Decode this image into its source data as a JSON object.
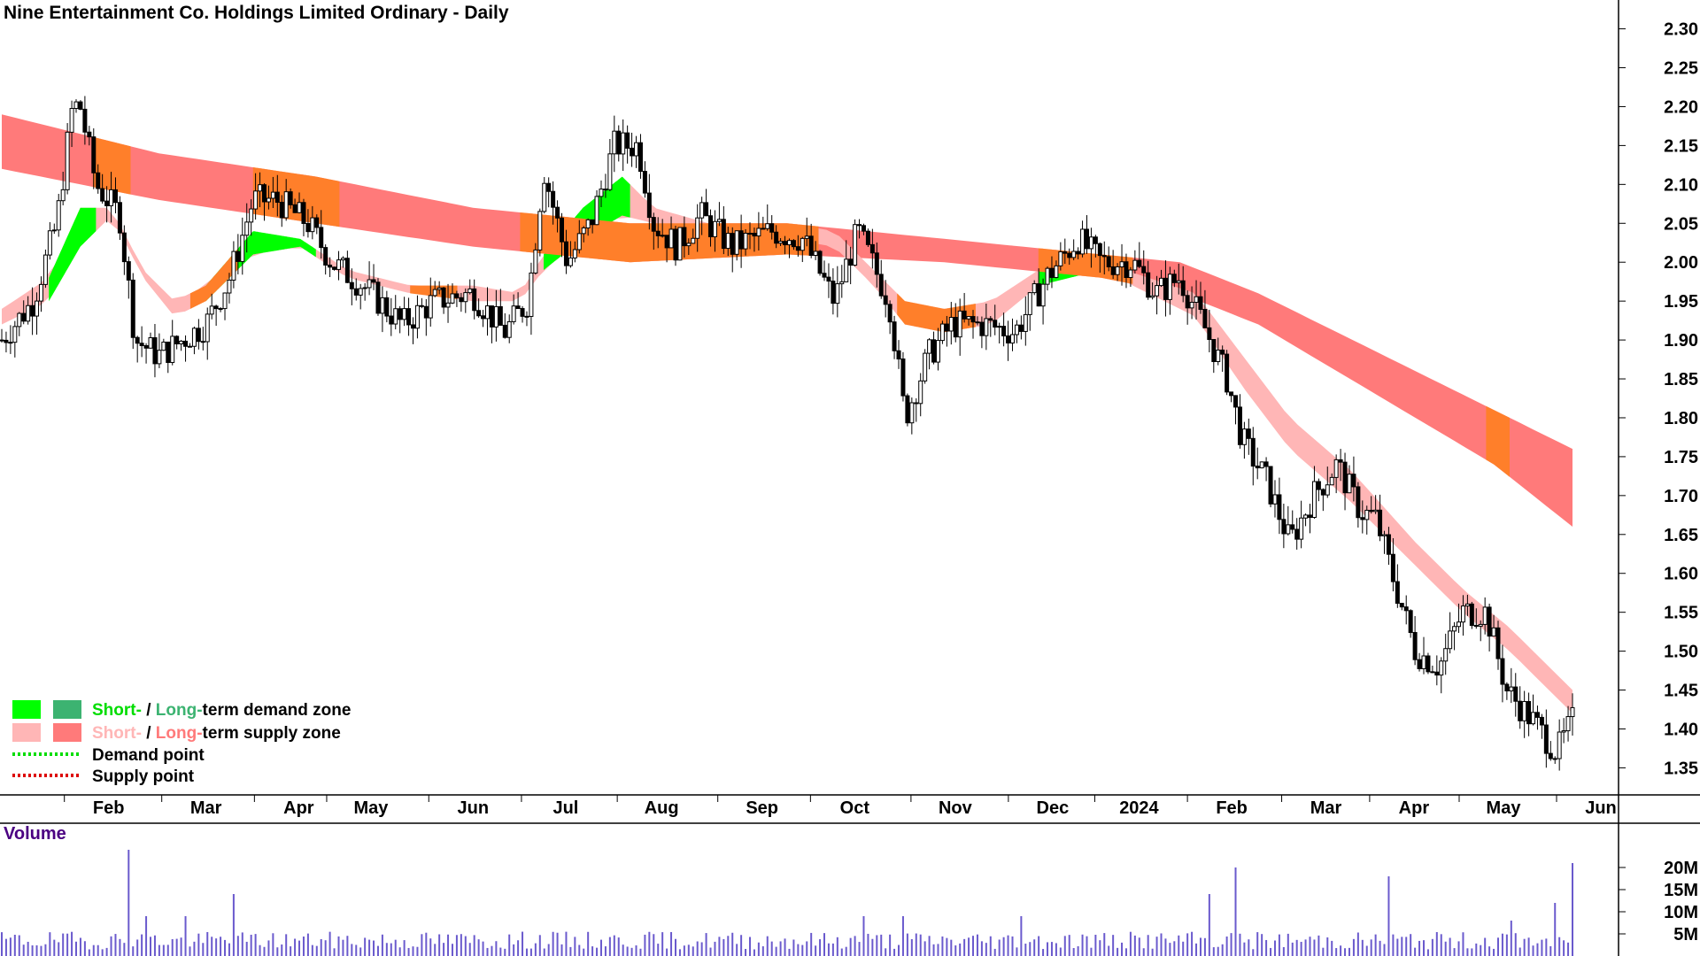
{
  "chart_data": {
    "type": "candlestick",
    "title": "Nine Entertainment Co. Holdings Limited Ordinary - Daily",
    "y_ticks": [
      "2.30",
      "2.25",
      "2.20",
      "2.15",
      "2.10",
      "2.05",
      "2.00",
      "1.95",
      "1.90",
      "1.85",
      "1.80",
      "1.75",
      "1.70",
      "1.65",
      "1.60",
      "1.55",
      "1.50",
      "1.45",
      "1.40",
      "1.35"
    ],
    "ylim": [
      1.33,
      2.32
    ],
    "x_ticks": [
      {
        "label": "Feb",
        "pos": 0.05
      },
      {
        "label": "Mar",
        "pos": 0.112
      },
      {
        "label": "Apr",
        "pos": 0.171
      },
      {
        "label": "May",
        "pos": 0.217
      },
      {
        "label": "Jun",
        "pos": 0.282
      },
      {
        "label": "Jul",
        "pos": 0.341
      },
      {
        "label": "Aug",
        "pos": 0.402
      },
      {
        "label": "Sep",
        "pos": 0.466
      },
      {
        "label": "Oct",
        "pos": 0.525
      },
      {
        "label": "Nov",
        "pos": 0.589
      },
      {
        "label": "Dec",
        "pos": 0.651
      },
      {
        "label": "2024",
        "pos": 0.706
      },
      {
        "label": "Feb",
        "pos": 0.765
      },
      {
        "label": "Mar",
        "pos": 0.825
      },
      {
        "label": "Apr",
        "pos": 0.881
      },
      {
        "label": "May",
        "pos": 0.938
      },
      {
        "label": "Jun",
        "pos": 1.0
      }
    ],
    "price_anchors": [
      [
        0,
        1.9
      ],
      [
        0.02,
        1.95
      ],
      [
        0.035,
        2.05
      ],
      [
        0.045,
        2.2
      ],
      [
        0.05,
        2.2
      ],
      [
        0.06,
        2.1
      ],
      [
        0.075,
        2.06
      ],
      [
        0.085,
        1.9
      ],
      [
        0.1,
        1.88
      ],
      [
        0.115,
        1.9
      ],
      [
        0.13,
        1.92
      ],
      [
        0.145,
        1.98
      ],
      [
        0.16,
        2.08
      ],
      [
        0.175,
        2.08
      ],
      [
        0.195,
        2.05
      ],
      [
        0.21,
        2.0
      ],
      [
        0.23,
        1.97
      ],
      [
        0.255,
        1.92
      ],
      [
        0.275,
        1.95
      ],
      [
        0.3,
        1.96
      ],
      [
        0.32,
        1.91
      ],
      [
        0.335,
        1.95
      ],
      [
        0.345,
        2.12
      ],
      [
        0.36,
        2.0
      ],
      [
        0.375,
        2.05
      ],
      [
        0.39,
        2.15
      ],
      [
        0.405,
        2.15
      ],
      [
        0.415,
        2.05
      ],
      [
        0.43,
        2.02
      ],
      [
        0.445,
        2.06
      ],
      [
        0.465,
        2.02
      ],
      [
        0.49,
        2.04
      ],
      [
        0.51,
        2.03
      ],
      [
        0.53,
        1.95
      ],
      [
        0.545,
        2.04
      ],
      [
        0.565,
        1.95
      ],
      [
        0.575,
        1.8
      ],
      [
        0.59,
        1.88
      ],
      [
        0.605,
        1.92
      ],
      [
        0.625,
        1.92
      ],
      [
        0.645,
        1.91
      ],
      [
        0.665,
        1.98
      ],
      [
        0.685,
        2.03
      ],
      [
        0.7,
        2.0
      ],
      [
        0.72,
        2.0
      ],
      [
        0.735,
        1.96
      ],
      [
        0.75,
        1.98
      ],
      [
        0.765,
        1.92
      ],
      [
        0.78,
        1.85
      ],
      [
        0.79,
        1.77
      ],
      [
        0.805,
        1.72
      ],
      [
        0.82,
        1.64
      ],
      [
        0.835,
        1.7
      ],
      [
        0.85,
        1.74
      ],
      [
        0.865,
        1.68
      ],
      [
        0.875,
        1.67
      ],
      [
        0.885,
        1.6
      ],
      [
        0.9,
        1.5
      ],
      [
        0.915,
        1.48
      ],
      [
        0.93,
        1.55
      ],
      [
        0.945,
        1.55
      ],
      [
        0.958,
        1.45
      ],
      [
        0.975,
        1.41
      ],
      [
        0.99,
        1.37
      ],
      [
        1.0,
        1.41
      ]
    ],
    "zones": {
      "long_supply_upper": [
        [
          0,
          2.19
        ],
        [
          0.1,
          2.14
        ],
        [
          0.2,
          2.11
        ],
        [
          0.3,
          2.07
        ],
        [
          0.4,
          2.05
        ],
        [
          0.5,
          2.05
        ],
        [
          0.6,
          2.03
        ],
        [
          0.7,
          2.01
        ],
        [
          0.75,
          2.0
        ],
        [
          0.8,
          1.96
        ],
        [
          0.85,
          1.91
        ],
        [
          0.9,
          1.86
        ],
        [
          0.95,
          1.81
        ],
        [
          1.0,
          1.76
        ]
      ],
      "long_supply_lower": [
        [
          0,
          2.12
        ],
        [
          0.1,
          2.08
        ],
        [
          0.2,
          2.05
        ],
        [
          0.3,
          2.02
        ],
        [
          0.4,
          2.0
        ],
        [
          0.5,
          2.01
        ],
        [
          0.6,
          2.0
        ],
        [
          0.7,
          1.98
        ],
        [
          0.75,
          1.96
        ],
        [
          0.8,
          1.92
        ],
        [
          0.85,
          1.86
        ],
        [
          0.9,
          1.8
        ],
        [
          0.95,
          1.74
        ],
        [
          1.0,
          1.66
        ]
      ],
      "short_upper": [
        [
          0,
          1.94
        ],
        [
          0.03,
          1.98
        ],
        [
          0.05,
          2.07
        ],
        [
          0.07,
          2.07
        ],
        [
          0.09,
          1.99
        ],
        [
          0.11,
          1.95
        ],
        [
          0.13,
          1.97
        ],
        [
          0.16,
          2.04
        ],
        [
          0.19,
          2.03
        ],
        [
          0.22,
          1.99
        ],
        [
          0.26,
          1.97
        ],
        [
          0.3,
          1.97
        ],
        [
          0.33,
          1.96
        ],
        [
          0.345,
          2.01
        ],
        [
          0.37,
          2.07
        ],
        [
          0.395,
          2.11
        ],
        [
          0.415,
          2.07
        ],
        [
          0.45,
          2.05
        ],
        [
          0.5,
          2.05
        ],
        [
          0.53,
          2.04
        ],
        [
          0.555,
          1.99
        ],
        [
          0.575,
          1.95
        ],
        [
          0.6,
          1.94
        ],
        [
          0.63,
          1.95
        ],
        [
          0.66,
          1.99
        ],
        [
          0.7,
          2.0
        ],
        [
          0.73,
          1.98
        ],
        [
          0.76,
          1.96
        ],
        [
          0.79,
          1.88
        ],
        [
          0.82,
          1.8
        ],
        [
          0.86,
          1.73
        ],
        [
          0.9,
          1.64
        ],
        [
          0.93,
          1.58
        ],
        [
          0.96,
          1.53
        ],
        [
          1.0,
          1.45
        ]
      ],
      "short_lower": [
        [
          0,
          1.92
        ],
        [
          0.03,
          1.95
        ],
        [
          0.05,
          2.02
        ],
        [
          0.07,
          2.06
        ],
        [
          0.09,
          1.98
        ],
        [
          0.11,
          1.93
        ],
        [
          0.13,
          1.95
        ],
        [
          0.16,
          2.01
        ],
        [
          0.19,
          2.02
        ],
        [
          0.22,
          1.98
        ],
        [
          0.26,
          1.96
        ],
        [
          0.3,
          1.95
        ],
        [
          0.33,
          1.95
        ],
        [
          0.345,
          1.99
        ],
        [
          0.37,
          2.03
        ],
        [
          0.395,
          2.06
        ],
        [
          0.415,
          2.05
        ],
        [
          0.45,
          2.03
        ],
        [
          0.5,
          2.03
        ],
        [
          0.53,
          2.02
        ],
        [
          0.555,
          1.97
        ],
        [
          0.575,
          1.92
        ],
        [
          0.6,
          1.91
        ],
        [
          0.63,
          1.92
        ],
        [
          0.66,
          1.97
        ],
        [
          0.7,
          1.99
        ],
        [
          0.73,
          1.96
        ],
        [
          0.76,
          1.93
        ],
        [
          0.79,
          1.84
        ],
        [
          0.82,
          1.76
        ],
        [
          0.86,
          1.69
        ],
        [
          0.9,
          1.61
        ],
        [
          0.93,
          1.55
        ],
        [
          0.96,
          1.5
        ],
        [
          1.0,
          1.42
        ]
      ],
      "demand_segments": [
        [
          0.03,
          0.06
        ],
        [
          0.13,
          0.2
        ],
        [
          0.345,
          0.4
        ],
        [
          0.66,
          0.705
        ]
      ]
    },
    "volume": {
      "label": "Volume",
      "ticks": [
        "20M",
        "15M",
        "10M",
        "5M"
      ],
      "ylim": [
        0,
        25
      ],
      "spikes": [
        [
          0.08,
          24
        ],
        [
          0.093,
          9
        ],
        [
          0.117,
          9
        ],
        [
          0.148,
          14
        ],
        [
          0.55,
          9
        ],
        [
          0.575,
          9
        ],
        [
          0.65,
          9
        ],
        [
          0.768,
          14
        ],
        [
          0.785,
          20
        ],
        [
          0.882,
          18
        ],
        [
          0.96,
          8
        ],
        [
          0.99,
          12
        ],
        [
          1.0,
          21
        ]
      ]
    },
    "legend": [
      {
        "short": "Short-",
        "sep": " / ",
        "long": "Long-",
        "rest": "term demand zone",
        "short_color": "#00ff00",
        "long_color": "#3cb371"
      },
      {
        "short": "Short-",
        "sep": " / ",
        "long": "Long-",
        "rest": "term supply zone",
        "short_color": "#ffb6b6",
        "long_color": "#ff7a7a"
      },
      {
        "text": "Demand point",
        "color": "#00dd00"
      },
      {
        "text": "Supply point",
        "color": "#dd0000"
      }
    ]
  }
}
